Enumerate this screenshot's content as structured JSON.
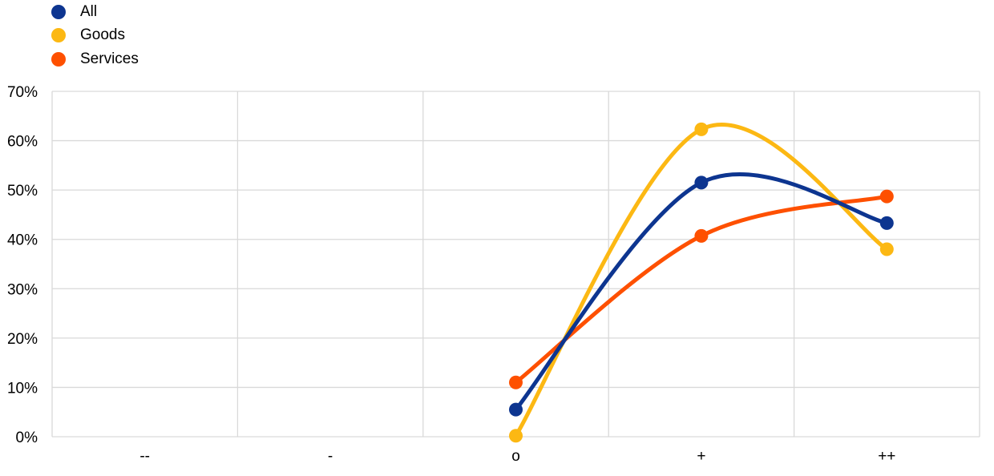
{
  "chart_data": {
    "type": "line",
    "title": "",
    "xlabel": "",
    "ylabel": "",
    "categories": [
      "--",
      "-",
      "o",
      "+",
      "++"
    ],
    "ylim": [
      0,
      70
    ],
    "yticks": [
      "0%",
      "10%",
      "20%",
      "30%",
      "40%",
      "50%",
      "60%",
      "70%"
    ],
    "grid": true,
    "legend_position": "top-left",
    "series": [
      {
        "name": "All",
        "color": "#0d3590",
        "values": [
          null,
          null,
          5.5,
          51.5,
          43.3
        ]
      },
      {
        "name": "Goods",
        "color": "#fcb813",
        "values": [
          null,
          null,
          0.2,
          62.3,
          38.0
        ]
      },
      {
        "name": "Services",
        "color": "#fe5000",
        "values": [
          null,
          null,
          11.0,
          40.7,
          48.7
        ]
      }
    ]
  }
}
